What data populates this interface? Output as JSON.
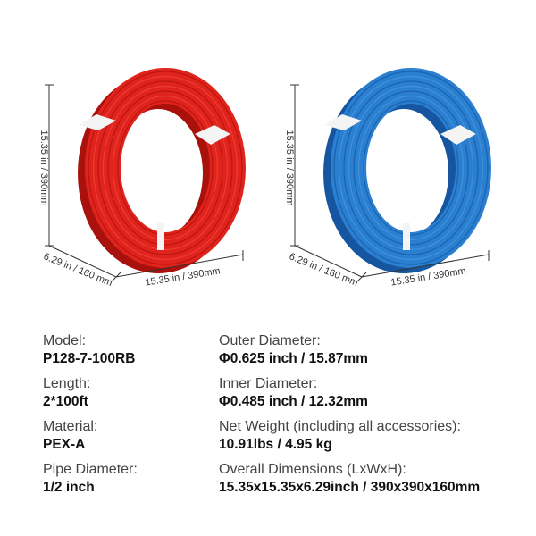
{
  "coils": [
    {
      "height": "15.35 in / 390mm",
      "depth": "6.29 in / 160 mm",
      "width": "15.35 in / 390mm"
    },
    {
      "height": "15.35 in / 390mm",
      "depth": "6.29 in / 160 mm",
      "width": "15.35 in / 390mm"
    }
  ],
  "specs": {
    "left": [
      {
        "label": "Model:",
        "value": "P128-7-100RB"
      },
      {
        "label": "Length:",
        "value": "2*100ft"
      },
      {
        "label": "Material:",
        "value": "PEX-A"
      },
      {
        "label": "Pipe Diameter:",
        "value": "1/2 inch"
      }
    ],
    "right": [
      {
        "label": "Outer Diameter:",
        "value": "Φ0.625 inch / 15.87mm"
      },
      {
        "label": "Inner Diameter:",
        "value": "Φ0.485 inch / 12.32mm"
      },
      {
        "label": "Net Weight (including all accessories):",
        "value": "10.91lbs / 4.95 kg"
      },
      {
        "label": "Overall Dimensions (LxWxH):",
        "value": "15.35x15.35x6.29inch / 390x390x160mm"
      }
    ]
  }
}
